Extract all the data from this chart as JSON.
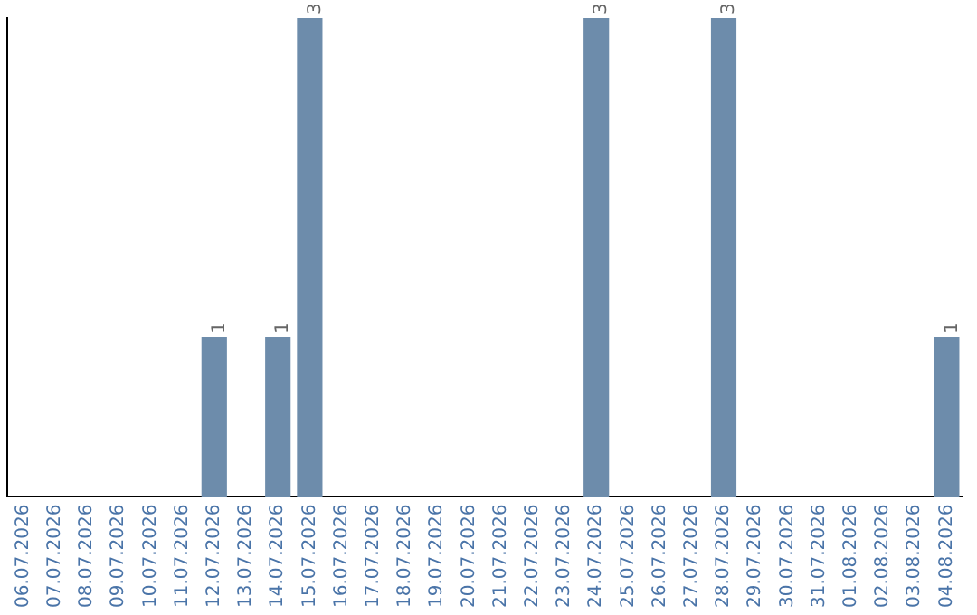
{
  "chart_data": {
    "type": "bar",
    "categories": [
      "06.07.2026",
      "07.07.2026",
      "08.07.2026",
      "09.07.2026",
      "10.07.2026",
      "11.07.2026",
      "12.07.2026",
      "13.07.2026",
      "14.07.2026",
      "15.07.2026",
      "16.07.2026",
      "17.07.2026",
      "18.07.2026",
      "19.07.2026",
      "20.07.2026",
      "21.07.2026",
      "22.07.2026",
      "23.07.2026",
      "24.07.2026",
      "25.07.2026",
      "26.07.2026",
      "27.07.2026",
      "28.07.2026",
      "29.07.2026",
      "30.07.2026",
      "31.07.2026",
      "01.08.2026",
      "02.08.2026",
      "03.08.2026",
      "04.08.2026"
    ],
    "values": [
      0,
      0,
      0,
      0,
      0,
      0,
      1,
      0,
      1,
      3,
      0,
      0,
      0,
      0,
      0,
      0,
      0,
      0,
      3,
      0,
      0,
      0,
      3,
      0,
      0,
      0,
      0,
      0,
      0,
      1
    ],
    "value_labels": [
      null,
      null,
      null,
      null,
      null,
      null,
      "1",
      null,
      "1",
      "3",
      null,
      null,
      null,
      null,
      null,
      null,
      null,
      null,
      "3",
      null,
      null,
      null,
      "3",
      null,
      null,
      null,
      null,
      null,
      null,
      "1"
    ],
    "color": "#6d8cab",
    "grid": false,
    "legend": false,
    "tick_labels": "x"
  }
}
